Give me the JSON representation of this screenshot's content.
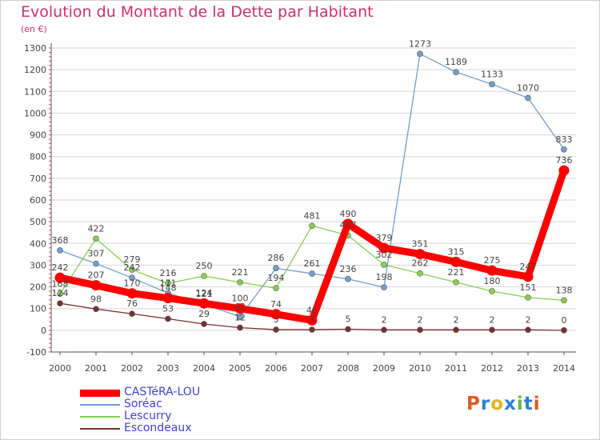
{
  "header": {
    "title": "Evolution du Montant de la Dette par Habitant",
    "subtitle": "(en €)"
  },
  "brand": {
    "logo_text": "Proxiti",
    "logo_colors": [
      "#e05a1e",
      "#2a7fd4",
      "#e8b21a",
      "#2a7fd4",
      "#6ab840",
      "#2a7fd4",
      "#e05a1e"
    ]
  },
  "colors": {
    "title": "#d0306a",
    "legend_text": "#4040e0",
    "grid": "#cccccc"
  },
  "chart_data": {
    "type": "line",
    "title": "Evolution du Montant de la Dette par Habitant",
    "ylabel": "(en €)",
    "xlabel": "",
    "x": [
      "2000",
      "2001",
      "2002",
      "2003",
      "2004",
      "2005",
      "2006",
      "2007",
      "2008",
      "2009",
      "2010",
      "2011",
      "2012",
      "2013",
      "2014"
    ],
    "ylim": [
      -100,
      1300
    ],
    "yticks": [
      -100,
      0,
      100,
      200,
      300,
      400,
      500,
      600,
      700,
      800,
      900,
      1000,
      1100,
      1200,
      1300
    ],
    "grid": "horizontal",
    "legend_position": "bottom-left",
    "series": [
      {
        "name": "CASTéRA-LOU",
        "color": "#ff0000",
        "values": [
          242,
          207,
          170,
          148,
          124,
          100,
          74,
          46,
          490,
          379,
          351,
          315,
          275,
          247,
          736
        ]
      },
      {
        "name": "Soréac",
        "color": "#6fa0d0",
        "values": [
          368,
          307,
          242,
          171,
          121,
          62,
          286,
          261,
          236,
          198,
          1273,
          1189,
          1133,
          1070,
          833
        ]
      },
      {
        "name": "Lescurry",
        "color": "#88d050",
        "values": [
          168,
          422,
          279,
          216,
          250,
          221,
          194,
          481,
          437,
          302,
          262,
          221,
          180,
          151,
          138
        ]
      },
      {
        "name": "Escondeaux",
        "color": "#7a3030",
        "values": [
          124,
          98,
          76,
          53,
          29,
          12,
          3,
          3,
          5,
          2,
          2,
          2,
          2,
          2,
          0
        ]
      }
    ]
  }
}
